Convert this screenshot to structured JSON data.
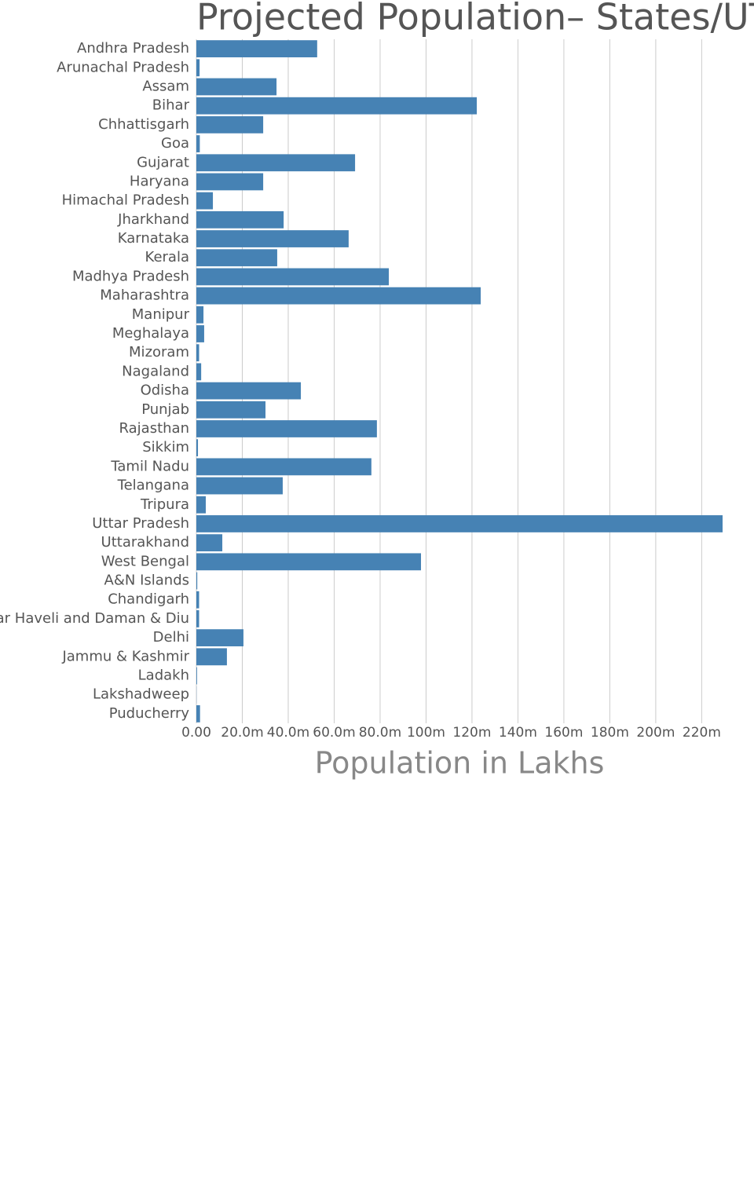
{
  "chart_data": {
    "type": "bar",
    "orientation": "horizontal",
    "title": "Projected Population– States/UT",
    "xlabel": "Population in Lakhs",
    "categories": [
      "Andhra Pradesh",
      "Arunachal Pradesh",
      "Assam",
      "Bihar",
      "Chhattisgarh",
      "Goa",
      "Gujarat",
      "Haryana",
      "Himachal Pradesh",
      "Jharkhand",
      "Karnataka",
      "Kerala",
      "Madhya Pradesh",
      "Maharashtra",
      "Manipur",
      "Meghalaya",
      "Mizoram",
      "Nagaland",
      "Odisha",
      "Punjab",
      "Rajasthan",
      "Sikkim",
      "Tamil Nadu",
      "Telangana",
      "Tripura",
      "Uttar Pradesh",
      "Uttarakhand",
      "West Bengal",
      "A&N Islands",
      "Chandigarh",
      "Dadra and Nagar Haveli and Daman & Diu",
      "Delhi",
      "Jammu & Kashmir",
      "Ladakh",
      "Lakshadweep",
      "Puducherry"
    ],
    "values": [
      52600000,
      1400000,
      34900000,
      122100000,
      29100000,
      1500000,
      69100000,
      29100000,
      7200000,
      38000000,
      66300000,
      35200000,
      83800000,
      123800000,
      3100000,
      3400000,
      1200000,
      2100000,
      45500000,
      30100000,
      78600000,
      700000,
      76200000,
      37600000,
      4100000,
      229100000,
      11300000,
      97800000,
      400000,
      1200000,
      1200000,
      20500000,
      13300000,
      300000,
      70000,
      1600000
    ],
    "color": "#4682b4",
    "xlim": [
      0,
      229100000
    ],
    "xticks": [
      {
        "value": 0,
        "label": "0.00"
      },
      {
        "value": 20000000,
        "label": "20.0m"
      },
      {
        "value": 40000000,
        "label": "40.0m"
      },
      {
        "value": 60000000,
        "label": "60.0m"
      },
      {
        "value": 80000000,
        "label": "80.0m"
      },
      {
        "value": 100000000,
        "label": "100m"
      },
      {
        "value": 120000000,
        "label": "120m"
      },
      {
        "value": 140000000,
        "label": "140m"
      },
      {
        "value": 160000000,
        "label": "160m"
      },
      {
        "value": 180000000,
        "label": "180m"
      },
      {
        "value": 200000000,
        "label": "200m"
      },
      {
        "value": 220000000,
        "label": "220m"
      }
    ],
    "grid": true
  }
}
